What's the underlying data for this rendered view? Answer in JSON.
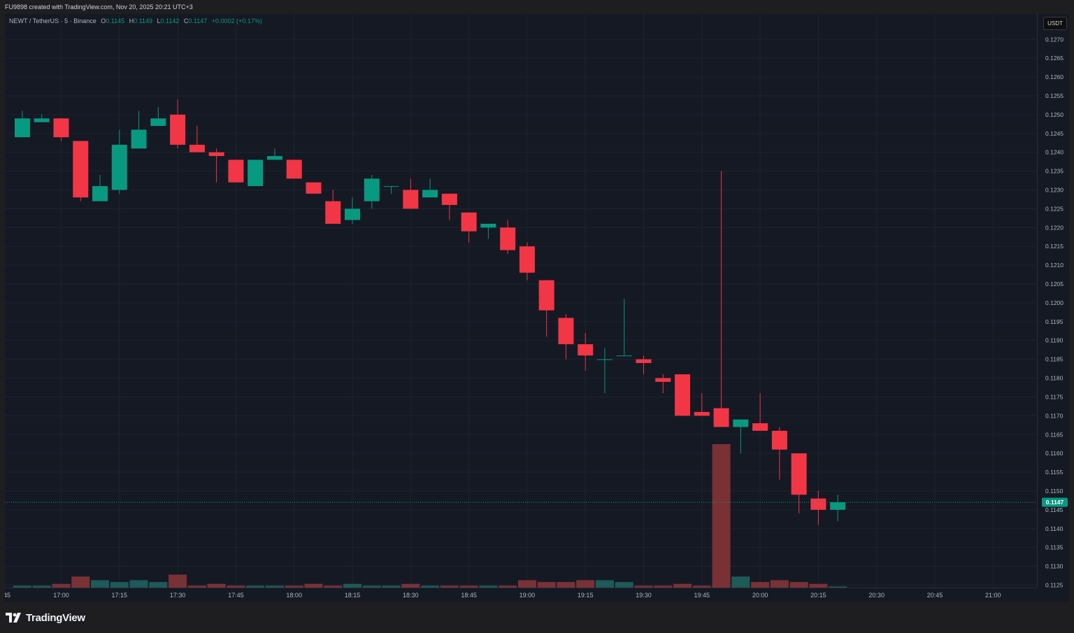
{
  "credit": "FU9898 created with TradingView.com, Nov 20, 2025 20:21 UTC+3",
  "legend": {
    "symbol": "NEWT / TetherUS · 5 · Binance",
    "o_label": "O",
    "o_value": "0.1145",
    "h_label": "H",
    "h_value": "0.1149",
    "l_label": "L",
    "l_value": "0.1142",
    "c_label": "C",
    "c_value": "0.1147",
    "change": "+0.0002 (+0.17%)"
  },
  "currency_button": "USDT",
  "footer_brand": "TradingView",
  "colors": {
    "up": "#089981",
    "down": "#f23645",
    "volume_up": "#1d5a5a",
    "volume_down": "#7a3136",
    "background": "#151924",
    "grid": "#1f2330",
    "text": "#b2b5be"
  },
  "chart_data": {
    "type": "candlestick",
    "interval_minutes": 5,
    "y_range": [
      0.1121,
      0.1276
    ],
    "y_ticks": [
      "0.1125",
      "0.1130",
      "0.1135",
      "0.1140",
      "0.1145",
      "0.1150",
      "0.1155",
      "0.1160",
      "0.1165",
      "0.1170",
      "0.1175",
      "0.1180",
      "0.1185",
      "0.1190",
      "0.1195",
      "0.1200",
      "0.1205",
      "0.1210",
      "0.1215",
      "0.1220",
      "0.1225",
      "0.1230",
      "0.1235",
      "0.1240",
      "0.1245",
      "0.1250",
      "0.1255",
      "0.1260",
      "0.1265",
      "0.1270"
    ],
    "x_ticks": [
      "17:00",
      "17:15",
      "17:30",
      "17:45",
      "18:00",
      "18:15",
      "18:30",
      "18:45",
      "19:00",
      "19:15",
      "19:30",
      "19:45",
      "20:00",
      "20:15",
      "20:30",
      "20:45",
      "21:00"
    ],
    "x_edge_label": "45",
    "last_price": "0.1147",
    "last_price_value": 0.1147,
    "candles": [
      {
        "t": "16:50",
        "o": 0.1244,
        "h": 0.1251,
        "l": 0.1244,
        "c": 0.1249,
        "v": 1
      },
      {
        "t": "16:55",
        "o": 0.1248,
        "h": 0.125,
        "l": 0.1248,
        "c": 0.1249,
        "v": 1
      },
      {
        "t": "17:00",
        "o": 0.1249,
        "h": 0.1249,
        "l": 0.1243,
        "c": 0.1244,
        "v": 2
      },
      {
        "t": "17:05",
        "o": 0.1243,
        "h": 0.1243,
        "l": 0.1227,
        "c": 0.1228,
        "v": 6
      },
      {
        "t": "17:10",
        "o": 0.1227,
        "h": 0.1234,
        "l": 0.1227,
        "c": 0.1231,
        "v": 4
      },
      {
        "t": "17:15",
        "o": 0.123,
        "h": 0.1246,
        "l": 0.1229,
        "c": 0.1242,
        "v": 3
      },
      {
        "t": "17:20",
        "o": 0.1241,
        "h": 0.1251,
        "l": 0.1241,
        "c": 0.1246,
        "v": 4
      },
      {
        "t": "17:25",
        "o": 0.1247,
        "h": 0.1252,
        "l": 0.1247,
        "c": 0.1249,
        "v": 3
      },
      {
        "t": "17:30",
        "o": 0.125,
        "h": 0.1254,
        "l": 0.1241,
        "c": 0.1242,
        "v": 7
      },
      {
        "t": "17:35",
        "o": 0.1242,
        "h": 0.1247,
        "l": 0.124,
        "c": 0.124,
        "v": 1
      },
      {
        "t": "17:40",
        "o": 0.124,
        "h": 0.1241,
        "l": 0.1232,
        "c": 0.1239,
        "v": 2
      },
      {
        "t": "17:45",
        "o": 0.1238,
        "h": 0.1238,
        "l": 0.1232,
        "c": 0.1232,
        "v": 1
      },
      {
        "t": "17:50",
        "o": 0.1231,
        "h": 0.1238,
        "l": 0.1231,
        "c": 0.1238,
        "v": 1
      },
      {
        "t": "17:55",
        "o": 0.1238,
        "h": 0.1241,
        "l": 0.1238,
        "c": 0.1239,
        "v": 1
      },
      {
        "t": "18:00",
        "o": 0.1238,
        "h": 0.1238,
        "l": 0.1233,
        "c": 0.1233,
        "v": 1
      },
      {
        "t": "18:05",
        "o": 0.1232,
        "h": 0.1232,
        "l": 0.1229,
        "c": 0.1229,
        "v": 2
      },
      {
        "t": "18:10",
        "o": 0.1227,
        "h": 0.123,
        "l": 0.1221,
        "c": 0.1221,
        "v": 1
      },
      {
        "t": "18:15",
        "o": 0.1222,
        "h": 0.1228,
        "l": 0.1221,
        "c": 0.1225,
        "v": 2
      },
      {
        "t": "18:20",
        "o": 0.1227,
        "h": 0.1234,
        "l": 0.1225,
        "c": 0.1233,
        "v": 1
      },
      {
        "t": "18:25",
        "o": 0.1231,
        "h": 0.1231,
        "l": 0.1229,
        "c": 0.1231,
        "v": 1
      },
      {
        "t": "18:30",
        "o": 0.123,
        "h": 0.1233,
        "l": 0.1225,
        "c": 0.1225,
        "v": 2
      },
      {
        "t": "18:35",
        "o": 0.1228,
        "h": 0.1233,
        "l": 0.1228,
        "c": 0.123,
        "v": 1
      },
      {
        "t": "18:40",
        "o": 0.1229,
        "h": 0.1229,
        "l": 0.1222,
        "c": 0.1226,
        "v": 1
      },
      {
        "t": "18:45",
        "o": 0.1224,
        "h": 0.1224,
        "l": 0.1216,
        "c": 0.1219,
        "v": 1
      },
      {
        "t": "18:50",
        "o": 0.122,
        "h": 0.1221,
        "l": 0.1217,
        "c": 0.1221,
        "v": 1
      },
      {
        "t": "18:55",
        "o": 0.122,
        "h": 0.1222,
        "l": 0.1213,
        "c": 0.1214,
        "v": 1
      },
      {
        "t": "19:00",
        "o": 0.1215,
        "h": 0.1216,
        "l": 0.1206,
        "c": 0.1208,
        "v": 4
      },
      {
        "t": "19:05",
        "o": 0.1206,
        "h": 0.1206,
        "l": 0.1191,
        "c": 0.1198,
        "v": 3
      },
      {
        "t": "19:10",
        "o": 0.1196,
        "h": 0.1197,
        "l": 0.1185,
        "c": 0.1189,
        "v": 3
      },
      {
        "t": "19:15",
        "o": 0.1189,
        "h": 0.1192,
        "l": 0.1182,
        "c": 0.1186,
        "v": 4
      },
      {
        "t": "19:20",
        "o": 0.1185,
        "h": 0.1188,
        "l": 0.1176,
        "c": 0.1185,
        "v": 4
      },
      {
        "t": "19:25",
        "o": 0.1186,
        "h": 0.1201,
        "l": 0.1186,
        "c": 0.1186,
        "v": 3
      },
      {
        "t": "19:30",
        "o": 0.1185,
        "h": 0.1186,
        "l": 0.1181,
        "c": 0.1184,
        "v": 1
      },
      {
        "t": "19:35",
        "o": 0.118,
        "h": 0.1181,
        "l": 0.1176,
        "c": 0.1179,
        "v": 1
      },
      {
        "t": "19:40",
        "o": 0.1181,
        "h": 0.1181,
        "l": 0.117,
        "c": 0.117,
        "v": 2
      },
      {
        "t": "19:45",
        "o": 0.1171,
        "h": 0.1176,
        "l": 0.117,
        "c": 0.117,
        "v": 1
      },
      {
        "t": "19:50",
        "o": 0.1172,
        "h": 0.1235,
        "l": 0.1167,
        "c": 0.1167,
        "v": 78
      },
      {
        "t": "19:55",
        "o": 0.1167,
        "h": 0.1169,
        "l": 0.116,
        "c": 0.1169,
        "v": 6
      },
      {
        "t": "20:00",
        "o": 0.1168,
        "h": 0.1176,
        "l": 0.1166,
        "c": 0.1166,
        "v": 3
      },
      {
        "t": "20:05",
        "o": 0.1166,
        "h": 0.1167,
        "l": 0.1153,
        "c": 0.1161,
        "v": 4
      },
      {
        "t": "20:10",
        "o": 0.116,
        "h": 0.116,
        "l": 0.1144,
        "c": 0.1149,
        "v": 3
      },
      {
        "t": "20:15",
        "o": 0.1148,
        "h": 0.115,
        "l": 0.1141,
        "c": 0.1145,
        "v": 2
      },
      {
        "t": "20:20",
        "o": 0.1145,
        "h": 0.1149,
        "l": 0.1142,
        "c": 0.1147,
        "v": 0.5
      }
    ]
  }
}
